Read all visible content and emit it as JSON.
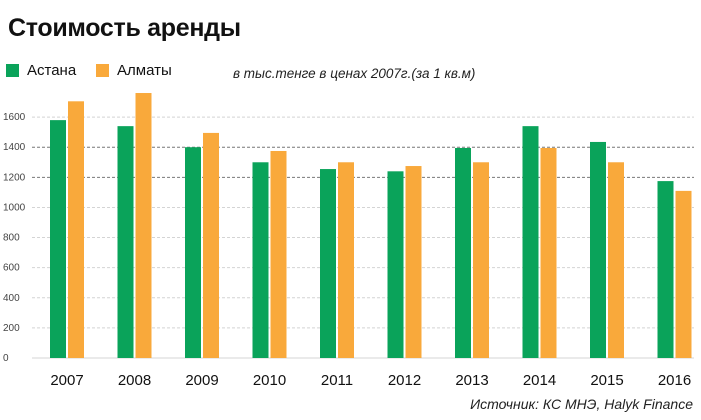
{
  "header": {
    "title": "Стоимость аренды",
    "unit_note": "в тыс.тенге в ценах 2007г.(за 1 кв.м)",
    "source": "Источник: КС МНЭ, Halyk Finance"
  },
  "legend": {
    "items": [
      {
        "label": "Астана",
        "color": "#0aa35a"
      },
      {
        "label": "Алматы",
        "color": "#f9a93b"
      }
    ]
  },
  "chart_data": {
    "type": "bar",
    "categories": [
      "2007",
      "2008",
      "2009",
      "2010",
      "2011",
      "2012",
      "2013",
      "2014",
      "2015",
      "2016"
    ],
    "series": [
      {
        "name": "Астана",
        "color": "#0aa35a",
        "values": [
          1580,
          1540,
          1400,
          1300,
          1255,
          1240,
          1395,
          1540,
          1435,
          1175
        ]
      },
      {
        "name": "Алматы",
        "color": "#f9a93b",
        "values": [
          1705,
          1760,
          1495,
          1375,
          1300,
          1275,
          1300,
          1395,
          1300,
          1110
        ]
      }
    ],
    "ylim": [
      0,
      1800
    ],
    "yticks": [
      0,
      200,
      400,
      600,
      800,
      1000,
      1200,
      1400,
      1600
    ],
    "dark_gridlines": [
      1200,
      1400
    ],
    "grid": true,
    "legend_position": "top-left",
    "xlabel": "",
    "ylabel": ""
  }
}
